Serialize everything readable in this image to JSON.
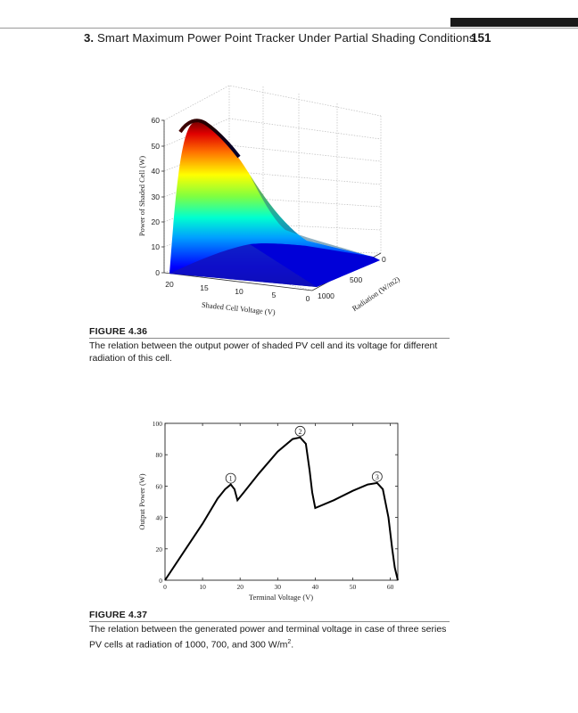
{
  "header": {
    "chapter_number": "3.",
    "chapter_title": "Smart Maximum Power Point Tracker Under Partial Shading Conditions",
    "page_number": "151"
  },
  "figure_436": {
    "label": "FIGURE 4.36",
    "caption": "The relation between the output power of shaded PV cell and its voltage for different radiation of this cell.",
    "chart_data": {
      "type": "surface",
      "zlabel": "Power of Shaded Cell (W)",
      "xlabel": "Shaded Cell Voltage (V)",
      "ylabel": "Radiation (W/m2)",
      "z_ticks": [
        "0",
        "10",
        "20",
        "30",
        "40",
        "50",
        "60"
      ],
      "x_ticks": [
        "20",
        "15",
        "10",
        "5",
        "0"
      ],
      "y_ticks": [
        "1000",
        "500",
        "0"
      ],
      "zlim": [
        0,
        60
      ],
      "colormap": "jet",
      "peak_power": 58
    }
  },
  "figure_437": {
    "label": "FIGURE 4.37",
    "caption_main": "The relation between the generated power and terminal voltage in case of three series PV cells at radiation of 1000, 700, and 300 W/m",
    "caption_sup": "2",
    "caption_end": ".",
    "chart_data": {
      "type": "line",
      "xlabel": "Terminal Voltage (V)",
      "ylabel": "Output Power (W)",
      "xlim": [
        0,
        62
      ],
      "ylim": [
        0,
        100
      ],
      "x_ticks": [
        0,
        10,
        20,
        30,
        40,
        50,
        60
      ],
      "y_ticks": [
        0,
        20,
        40,
        60,
        80,
        100
      ],
      "series": [
        {
          "x": [
            0,
            5,
            10,
            14,
            16,
            17.5,
            18.5,
            19.3,
            21,
            25,
            30,
            34,
            36,
            37.5,
            38.5,
            39.2,
            40,
            45,
            50,
            54,
            56.5,
            58,
            59.5,
            60.5,
            61.2,
            62
          ],
          "y": [
            0,
            18,
            36,
            52,
            58,
            61,
            58,
            51,
            56,
            68,
            82,
            90,
            91,
            87,
            70,
            56,
            46,
            51,
            57,
            61,
            62,
            58,
            40,
            20,
            8,
            0
          ]
        }
      ],
      "annotations": [
        {
          "text": "1",
          "x": 17.5,
          "y": 65
        },
        {
          "text": "2",
          "x": 36,
          "y": 95
        },
        {
          "text": "3",
          "x": 56.5,
          "y": 66
        }
      ]
    }
  }
}
